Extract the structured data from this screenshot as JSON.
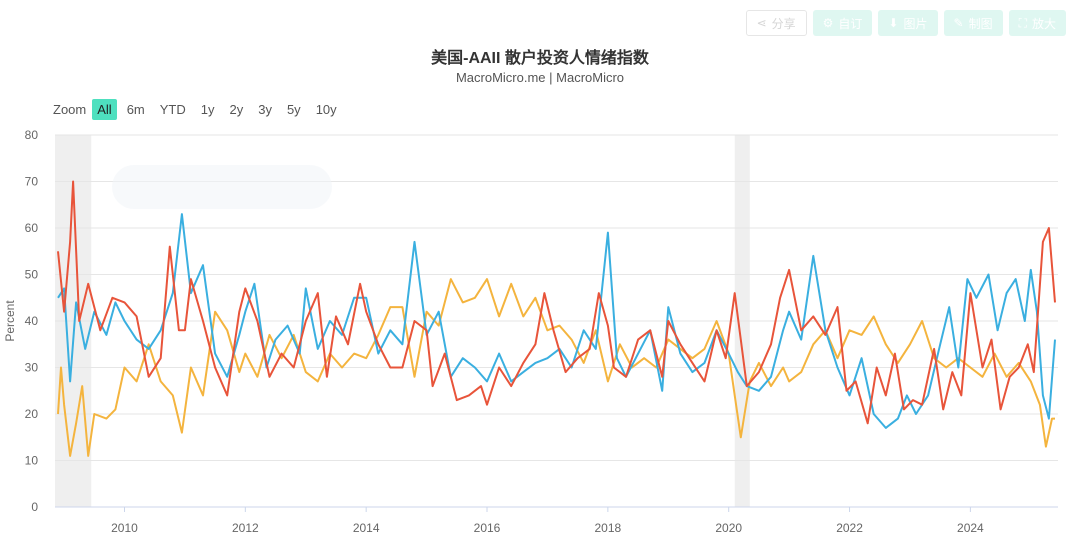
{
  "toolbar": {
    "buttons": [
      {
        "label": "分享",
        "icon": "share-icon",
        "glyph": "⋖"
      },
      {
        "label": "自订",
        "icon": "gear-icon",
        "glyph": "⚙"
      },
      {
        "label": "图片",
        "icon": "download-icon",
        "glyph": "⬇"
      },
      {
        "label": "制图",
        "icon": "pencil-icon",
        "glyph": "✎"
      },
      {
        "label": "放大",
        "icon": "expand-icon",
        "glyph": "⛶"
      }
    ]
  },
  "title": "美国-AAII 散户投资人情绪指数",
  "subtitle": "MacroMicro.me | MacroMicro",
  "zoom": {
    "label": "Zoom",
    "options": [
      "All",
      "6m",
      "YTD",
      "1y",
      "2y",
      "3y",
      "5y",
      "10y"
    ],
    "active": "All"
  },
  "chart_data": {
    "type": "line",
    "ylabel": "Percent",
    "ylim": [
      0,
      80
    ],
    "yticks": [
      0,
      10,
      20,
      30,
      40,
      50,
      60,
      70,
      80
    ],
    "xlim": [
      2008.85,
      2025.45
    ],
    "xticks": [
      "2010",
      "2012",
      "2014",
      "2016",
      "2018",
      "2020",
      "2022",
      "2024"
    ],
    "grid": true,
    "recession_shading": [
      [
        2008.85,
        2009.45
      ],
      [
        2020.1,
        2020.35
      ]
    ],
    "colors": {
      "red": "#e8543a",
      "blue": "#3aafe0",
      "orange": "#f4b43e"
    },
    "series": [
      {
        "color": "#e8543a",
        "points": [
          [
            2008.9,
            55
          ],
          [
            2009.0,
            42
          ],
          [
            2009.1,
            57
          ],
          [
            2009.15,
            70
          ],
          [
            2009.25,
            40
          ],
          [
            2009.4,
            48
          ],
          [
            2009.6,
            38
          ],
          [
            2009.8,
            45
          ],
          [
            2010.0,
            44
          ],
          [
            2010.2,
            41
          ],
          [
            2010.4,
            28
          ],
          [
            2010.6,
            32
          ],
          [
            2010.75,
            56
          ],
          [
            2010.9,
            38
          ],
          [
            2011.0,
            38
          ],
          [
            2011.1,
            49
          ],
          [
            2011.3,
            40
          ],
          [
            2011.5,
            30
          ],
          [
            2011.7,
            24
          ],
          [
            2011.9,
            42
          ],
          [
            2012.0,
            47
          ],
          [
            2012.2,
            40
          ],
          [
            2012.4,
            28
          ],
          [
            2012.6,
            33
          ],
          [
            2012.8,
            30
          ],
          [
            2013.0,
            40
          ],
          [
            2013.2,
            46
          ],
          [
            2013.35,
            28
          ],
          [
            2013.5,
            41
          ],
          [
            2013.7,
            35
          ],
          [
            2013.9,
            48
          ],
          [
            2014.0,
            42
          ],
          [
            2014.2,
            35
          ],
          [
            2014.4,
            30
          ],
          [
            2014.6,
            30
          ],
          [
            2014.8,
            40
          ],
          [
            2015.0,
            38
          ],
          [
            2015.1,
            26
          ],
          [
            2015.3,
            33
          ],
          [
            2015.5,
            23
          ],
          [
            2015.7,
            24
          ],
          [
            2015.9,
            26
          ],
          [
            2016.0,
            22
          ],
          [
            2016.2,
            30
          ],
          [
            2016.4,
            26
          ],
          [
            2016.6,
            31
          ],
          [
            2016.8,
            35
          ],
          [
            2016.95,
            46
          ],
          [
            2017.1,
            38
          ],
          [
            2017.3,
            29
          ],
          [
            2017.5,
            32
          ],
          [
            2017.7,
            34
          ],
          [
            2017.85,
            46
          ],
          [
            2018.0,
            39
          ],
          [
            2018.1,
            30
          ],
          [
            2018.3,
            28
          ],
          [
            2018.5,
            36
          ],
          [
            2018.7,
            38
          ],
          [
            2018.9,
            28
          ],
          [
            2019.0,
            40
          ],
          [
            2019.2,
            35
          ],
          [
            2019.4,
            31
          ],
          [
            2019.6,
            27
          ],
          [
            2019.8,
            38
          ],
          [
            2019.95,
            32
          ],
          [
            2020.1,
            46
          ],
          [
            2020.2,
            36
          ],
          [
            2020.3,
            26
          ],
          [
            2020.5,
            29
          ],
          [
            2020.7,
            35
          ],
          [
            2020.85,
            45
          ],
          [
            2021.0,
            51
          ],
          [
            2021.2,
            38
          ],
          [
            2021.4,
            41
          ],
          [
            2021.6,
            37
          ],
          [
            2021.8,
            43
          ],
          [
            2021.95,
            25
          ],
          [
            2022.1,
            27
          ],
          [
            2022.3,
            18
          ],
          [
            2022.45,
            30
          ],
          [
            2022.6,
            24
          ],
          [
            2022.75,
            33
          ],
          [
            2022.9,
            21
          ],
          [
            2023.05,
            23
          ],
          [
            2023.2,
            22
          ],
          [
            2023.4,
            34
          ],
          [
            2023.55,
            21
          ],
          [
            2023.7,
            29
          ],
          [
            2023.85,
            24
          ],
          [
            2024.0,
            46
          ],
          [
            2024.2,
            30
          ],
          [
            2024.35,
            36
          ],
          [
            2024.5,
            21
          ],
          [
            2024.65,
            28
          ],
          [
            2024.8,
            30
          ],
          [
            2024.95,
            35
          ],
          [
            2025.05,
            29
          ],
          [
            2025.2,
            57
          ],
          [
            2025.3,
            60
          ],
          [
            2025.4,
            44
          ]
        ]
      },
      {
        "color": "#3aafe0",
        "points": [
          [
            2008.9,
            45
          ],
          [
            2009.0,
            47
          ],
          [
            2009.1,
            27
          ],
          [
            2009.2,
            44
          ],
          [
            2009.35,
            34
          ],
          [
            2009.5,
            42
          ],
          [
            2009.7,
            37
          ],
          [
            2009.85,
            44
          ],
          [
            2010.0,
            40
          ],
          [
            2010.2,
            36
          ],
          [
            2010.4,
            34
          ],
          [
            2010.6,
            38
          ],
          [
            2010.8,
            46
          ],
          [
            2010.95,
            63
          ],
          [
            2011.1,
            46
          ],
          [
            2011.3,
            52
          ],
          [
            2011.5,
            33
          ],
          [
            2011.7,
            28
          ],
          [
            2011.9,
            37
          ],
          [
            2012.0,
            42
          ],
          [
            2012.15,
            48
          ],
          [
            2012.35,
            30
          ],
          [
            2012.5,
            36
          ],
          [
            2012.7,
            39
          ],
          [
            2012.9,
            33
          ],
          [
            2013.0,
            47
          ],
          [
            2013.2,
            34
          ],
          [
            2013.4,
            40
          ],
          [
            2013.6,
            37
          ],
          [
            2013.8,
            45
          ],
          [
            2014.0,
            45
          ],
          [
            2014.2,
            33
          ],
          [
            2014.4,
            38
          ],
          [
            2014.6,
            35
          ],
          [
            2014.8,
            57
          ],
          [
            2015.0,
            37
          ],
          [
            2015.2,
            42
          ],
          [
            2015.4,
            28
          ],
          [
            2015.6,
            32
          ],
          [
            2015.8,
            30
          ],
          [
            2016.0,
            27
          ],
          [
            2016.2,
            33
          ],
          [
            2016.4,
            27
          ],
          [
            2016.6,
            29
          ],
          [
            2016.8,
            31
          ],
          [
            2017.0,
            32
          ],
          [
            2017.2,
            34
          ],
          [
            2017.4,
            30
          ],
          [
            2017.6,
            38
          ],
          [
            2017.8,
            34
          ],
          [
            2018.0,
            59
          ],
          [
            2018.15,
            32
          ],
          [
            2018.3,
            28
          ],
          [
            2018.5,
            33
          ],
          [
            2018.7,
            38
          ],
          [
            2018.9,
            25
          ],
          [
            2019.0,
            43
          ],
          [
            2019.2,
            33
          ],
          [
            2019.4,
            29
          ],
          [
            2019.6,
            31
          ],
          [
            2019.8,
            38
          ],
          [
            2020.0,
            33
          ],
          [
            2020.15,
            29
          ],
          [
            2020.3,
            26
          ],
          [
            2020.5,
            25
          ],
          [
            2020.7,
            28
          ],
          [
            2020.9,
            38
          ],
          [
            2021.0,
            42
          ],
          [
            2021.2,
            36
          ],
          [
            2021.4,
            54
          ],
          [
            2021.6,
            38
          ],
          [
            2021.8,
            30
          ],
          [
            2022.0,
            24
          ],
          [
            2022.2,
            32
          ],
          [
            2022.4,
            20
          ],
          [
            2022.6,
            17
          ],
          [
            2022.8,
            19
          ],
          [
            2022.95,
            24
          ],
          [
            2023.1,
            20
          ],
          [
            2023.3,
            24
          ],
          [
            2023.5,
            35
          ],
          [
            2023.65,
            43
          ],
          [
            2023.8,
            30
          ],
          [
            2023.95,
            49
          ],
          [
            2024.1,
            45
          ],
          [
            2024.3,
            50
          ],
          [
            2024.45,
            38
          ],
          [
            2024.6,
            46
          ],
          [
            2024.75,
            49
          ],
          [
            2024.9,
            40
          ],
          [
            2025.0,
            51
          ],
          [
            2025.1,
            42
          ],
          [
            2025.2,
            24
          ],
          [
            2025.3,
            19
          ],
          [
            2025.4,
            36
          ]
        ]
      },
      {
        "color": "#f4b43e",
        "points": [
          [
            2008.9,
            20
          ],
          [
            2008.95,
            30
          ],
          [
            2009.0,
            22
          ],
          [
            2009.1,
            11
          ],
          [
            2009.2,
            18
          ],
          [
            2009.3,
            26
          ],
          [
            2009.4,
            11
          ],
          [
            2009.5,
            20
          ],
          [
            2009.7,
            19
          ],
          [
            2009.85,
            21
          ],
          [
            2010.0,
            30
          ],
          [
            2010.2,
            27
          ],
          [
            2010.4,
            35
          ],
          [
            2010.6,
            27
          ],
          [
            2010.8,
            24
          ],
          [
            2010.95,
            16
          ],
          [
            2011.1,
            30
          ],
          [
            2011.3,
            24
          ],
          [
            2011.5,
            42
          ],
          [
            2011.7,
            38
          ],
          [
            2011.9,
            29
          ],
          [
            2012.0,
            33
          ],
          [
            2012.2,
            28
          ],
          [
            2012.4,
            37
          ],
          [
            2012.6,
            32
          ],
          [
            2012.8,
            37
          ],
          [
            2013.0,
            29
          ],
          [
            2013.2,
            27
          ],
          [
            2013.4,
            33
          ],
          [
            2013.6,
            30
          ],
          [
            2013.8,
            33
          ],
          [
            2014.0,
            32
          ],
          [
            2014.2,
            37
          ],
          [
            2014.4,
            43
          ],
          [
            2014.6,
            43
          ],
          [
            2014.8,
            28
          ],
          [
            2015.0,
            42
          ],
          [
            2015.2,
            39
          ],
          [
            2015.4,
            49
          ],
          [
            2015.6,
            44
          ],
          [
            2015.8,
            45
          ],
          [
            2016.0,
            49
          ],
          [
            2016.2,
            41
          ],
          [
            2016.4,
            48
          ],
          [
            2016.6,
            41
          ],
          [
            2016.8,
            45
          ],
          [
            2017.0,
            38
          ],
          [
            2017.2,
            39
          ],
          [
            2017.4,
            36
          ],
          [
            2017.6,
            31
          ],
          [
            2017.8,
            38
          ],
          [
            2018.0,
            27
          ],
          [
            2018.2,
            35
          ],
          [
            2018.4,
            30
          ],
          [
            2018.6,
            32
          ],
          [
            2018.8,
            30
          ],
          [
            2019.0,
            36
          ],
          [
            2019.2,
            34
          ],
          [
            2019.4,
            32
          ],
          [
            2019.6,
            34
          ],
          [
            2019.8,
            40
          ],
          [
            2020.0,
            33
          ],
          [
            2020.1,
            24
          ],
          [
            2020.2,
            15
          ],
          [
            2020.35,
            27
          ],
          [
            2020.5,
            31
          ],
          [
            2020.7,
            26
          ],
          [
            2020.9,
            30
          ],
          [
            2021.0,
            27
          ],
          [
            2021.2,
            29
          ],
          [
            2021.4,
            35
          ],
          [
            2021.6,
            38
          ],
          [
            2021.8,
            32
          ],
          [
            2022.0,
            38
          ],
          [
            2022.2,
            37
          ],
          [
            2022.4,
            41
          ],
          [
            2022.6,
            35
          ],
          [
            2022.8,
            31
          ],
          [
            2023.0,
            35
          ],
          [
            2023.2,
            40
          ],
          [
            2023.4,
            32
          ],
          [
            2023.6,
            30
          ],
          [
            2023.8,
            32
          ],
          [
            2024.0,
            30
          ],
          [
            2024.2,
            28
          ],
          [
            2024.4,
            33
          ],
          [
            2024.6,
            28
          ],
          [
            2024.8,
            31
          ],
          [
            2025.0,
            27
          ],
          [
            2025.15,
            22
          ],
          [
            2025.25,
            13
          ],
          [
            2025.35,
            19
          ],
          [
            2025.4,
            19
          ]
        ]
      }
    ]
  }
}
